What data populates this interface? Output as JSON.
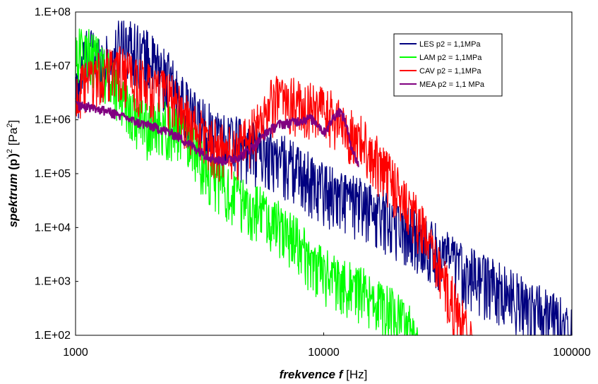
{
  "chart_data": {
    "type": "line",
    "xscale": "log",
    "yscale": "log",
    "xlim": [
      1000,
      100000
    ],
    "ylim": [
      100,
      100000000
    ],
    "x_ticks": [
      {
        "value": 1000,
        "label": "1000"
      },
      {
        "value": 10000,
        "label": "10000"
      },
      {
        "value": 100000,
        "label": "100000"
      }
    ],
    "y_ticks": [
      {
        "value": 100,
        "label": "1.E+02"
      },
      {
        "value": 1000,
        "label": "1.E+03"
      },
      {
        "value": 10000,
        "label": "1.E+04"
      },
      {
        "value": 100000,
        "label": "1.E+05"
      },
      {
        "value": 1000000,
        "label": "1.E+06"
      },
      {
        "value": 10000000,
        "label": "1.E+07"
      },
      {
        "value": 100000000,
        "label": "1.E+08"
      }
    ],
    "xlabel": {
      "emphasis": "frekvence f",
      "rest": " [Hz]"
    },
    "ylabel": {
      "emphasis": "spektrum",
      "main": "(p",
      "sup1": "'",
      "mid": ")",
      "sup2": "2",
      "unit": " [Pa",
      "sup3": "2",
      "end": "]"
    },
    "grid": false,
    "legend_position": "top-right",
    "series": [
      {
        "name": "LES p2 = 1,1MPa",
        "color": "#000080",
        "x": [
          1000,
          1100,
          1250,
          1400,
          1550,
          1700,
          1850,
          2000,
          2200,
          2400,
          2600,
          2800,
          3000,
          3300,
          3600,
          4000,
          4400,
          4800,
          5200,
          5700,
          6200,
          6800,
          7400,
          8000,
          8800,
          9600,
          10500,
          11500,
          12500,
          14000,
          15500,
          17000,
          19000,
          21000,
          23000,
          25500,
          28000,
          31000,
          34000,
          38000,
          42000,
          47000,
          52000,
          58000,
          65000,
          72000,
          80000,
          90000,
          100000
        ],
        "y": [
          3000000,
          20000000,
          15000000,
          12000000,
          40000000,
          25000000,
          20000000,
          15000000,
          9000000,
          6000000,
          3000000,
          1800000,
          1200000,
          900000,
          700000,
          500000,
          450000,
          380000,
          330000,
          300000,
          250000,
          200000,
          160000,
          120000,
          90000,
          70000,
          55000,
          45000,
          38000,
          30000,
          25000,
          20000,
          15000,
          11000,
          8000,
          6000,
          4500,
          3200,
          2300,
          1700,
          1300,
          1000,
          780,
          600,
          450,
          330,
          250,
          200,
          160
        ],
        "noise": 0.55
      },
      {
        "name": "LAM p2 = 1,1MPa",
        "color": "#00ff00",
        "x": [
          1000,
          1100,
          1200,
          1350,
          1500,
          1700,
          1900,
          2100,
          2300,
          2600,
          2900,
          3200,
          3600,
          4000,
          4500,
          5000,
          5600,
          6200,
          7000,
          7800,
          8600,
          9500,
          10500,
          11500,
          13000,
          14500,
          16000,
          18000,
          20000,
          22000,
          24000
        ],
        "y": [
          20000000,
          22000000,
          15000000,
          8000000,
          4000000,
          1500000,
          900000,
          800000,
          900000,
          700000,
          500000,
          200000,
          100000,
          60000,
          40000,
          30000,
          22000,
          15000,
          10000,
          6000,
          3500,
          2000,
          1500,
          1200,
          900,
          700,
          500,
          350,
          250,
          150,
          100
        ],
        "noise": 0.5
      },
      {
        "name": "CAV p2 = 1,1MPa",
        "color": "#ff0000",
        "x": [
          1000,
          1150,
          1300,
          1500,
          1700,
          1900,
          2100,
          2400,
          2700,
          3000,
          3400,
          3800,
          4300,
          4800,
          5400,
          6000,
          6700,
          7500,
          8400,
          9400,
          10500,
          11500,
          12500,
          14000,
          15500,
          17000,
          19000,
          21000,
          23000,
          25000,
          27000,
          29000,
          31000,
          33000,
          35000,
          37000,
          40000
        ],
        "y": [
          3000000,
          6000000,
          8000000,
          10000000,
          6000000,
          5000000,
          4000000,
          3000000,
          1500000,
          800000,
          500000,
          350000,
          300000,
          400000,
          900000,
          2000000,
          3000000,
          2500000,
          2000000,
          1800000,
          1500000,
          1000000,
          700000,
          500000,
          300000,
          150000,
          80000,
          40000,
          20000,
          10000,
          4000,
          2000,
          1000,
          500,
          250,
          150,
          100
        ],
        "noise": 0.5
      },
      {
        "name": "MEA p2 = 1,1 MPa",
        "color": "#800080",
        "x": [
          1000,
          1200,
          1400,
          1600,
          1800,
          2000,
          2300,
          2600,
          3000,
          3400,
          3800,
          4200,
          4600,
          5000,
          5500,
          6000,
          6600,
          7200,
          8000,
          8800,
          9400,
          10000,
          10500,
          11000,
          11600,
          12200,
          12600,
          13200,
          13800
        ],
        "y": [
          2000000,
          1700000,
          1400000,
          1100000,
          900000,
          800000,
          650000,
          500000,
          320000,
          220000,
          180000,
          190000,
          220000,
          280000,
          420000,
          650000,
          850000,
          900000,
          1000000,
          1100000,
          900000,
          600000,
          800000,
          1200000,
          1500000,
          1000000,
          500000,
          250000,
          150000
        ],
        "noise": 0.08
      }
    ]
  }
}
